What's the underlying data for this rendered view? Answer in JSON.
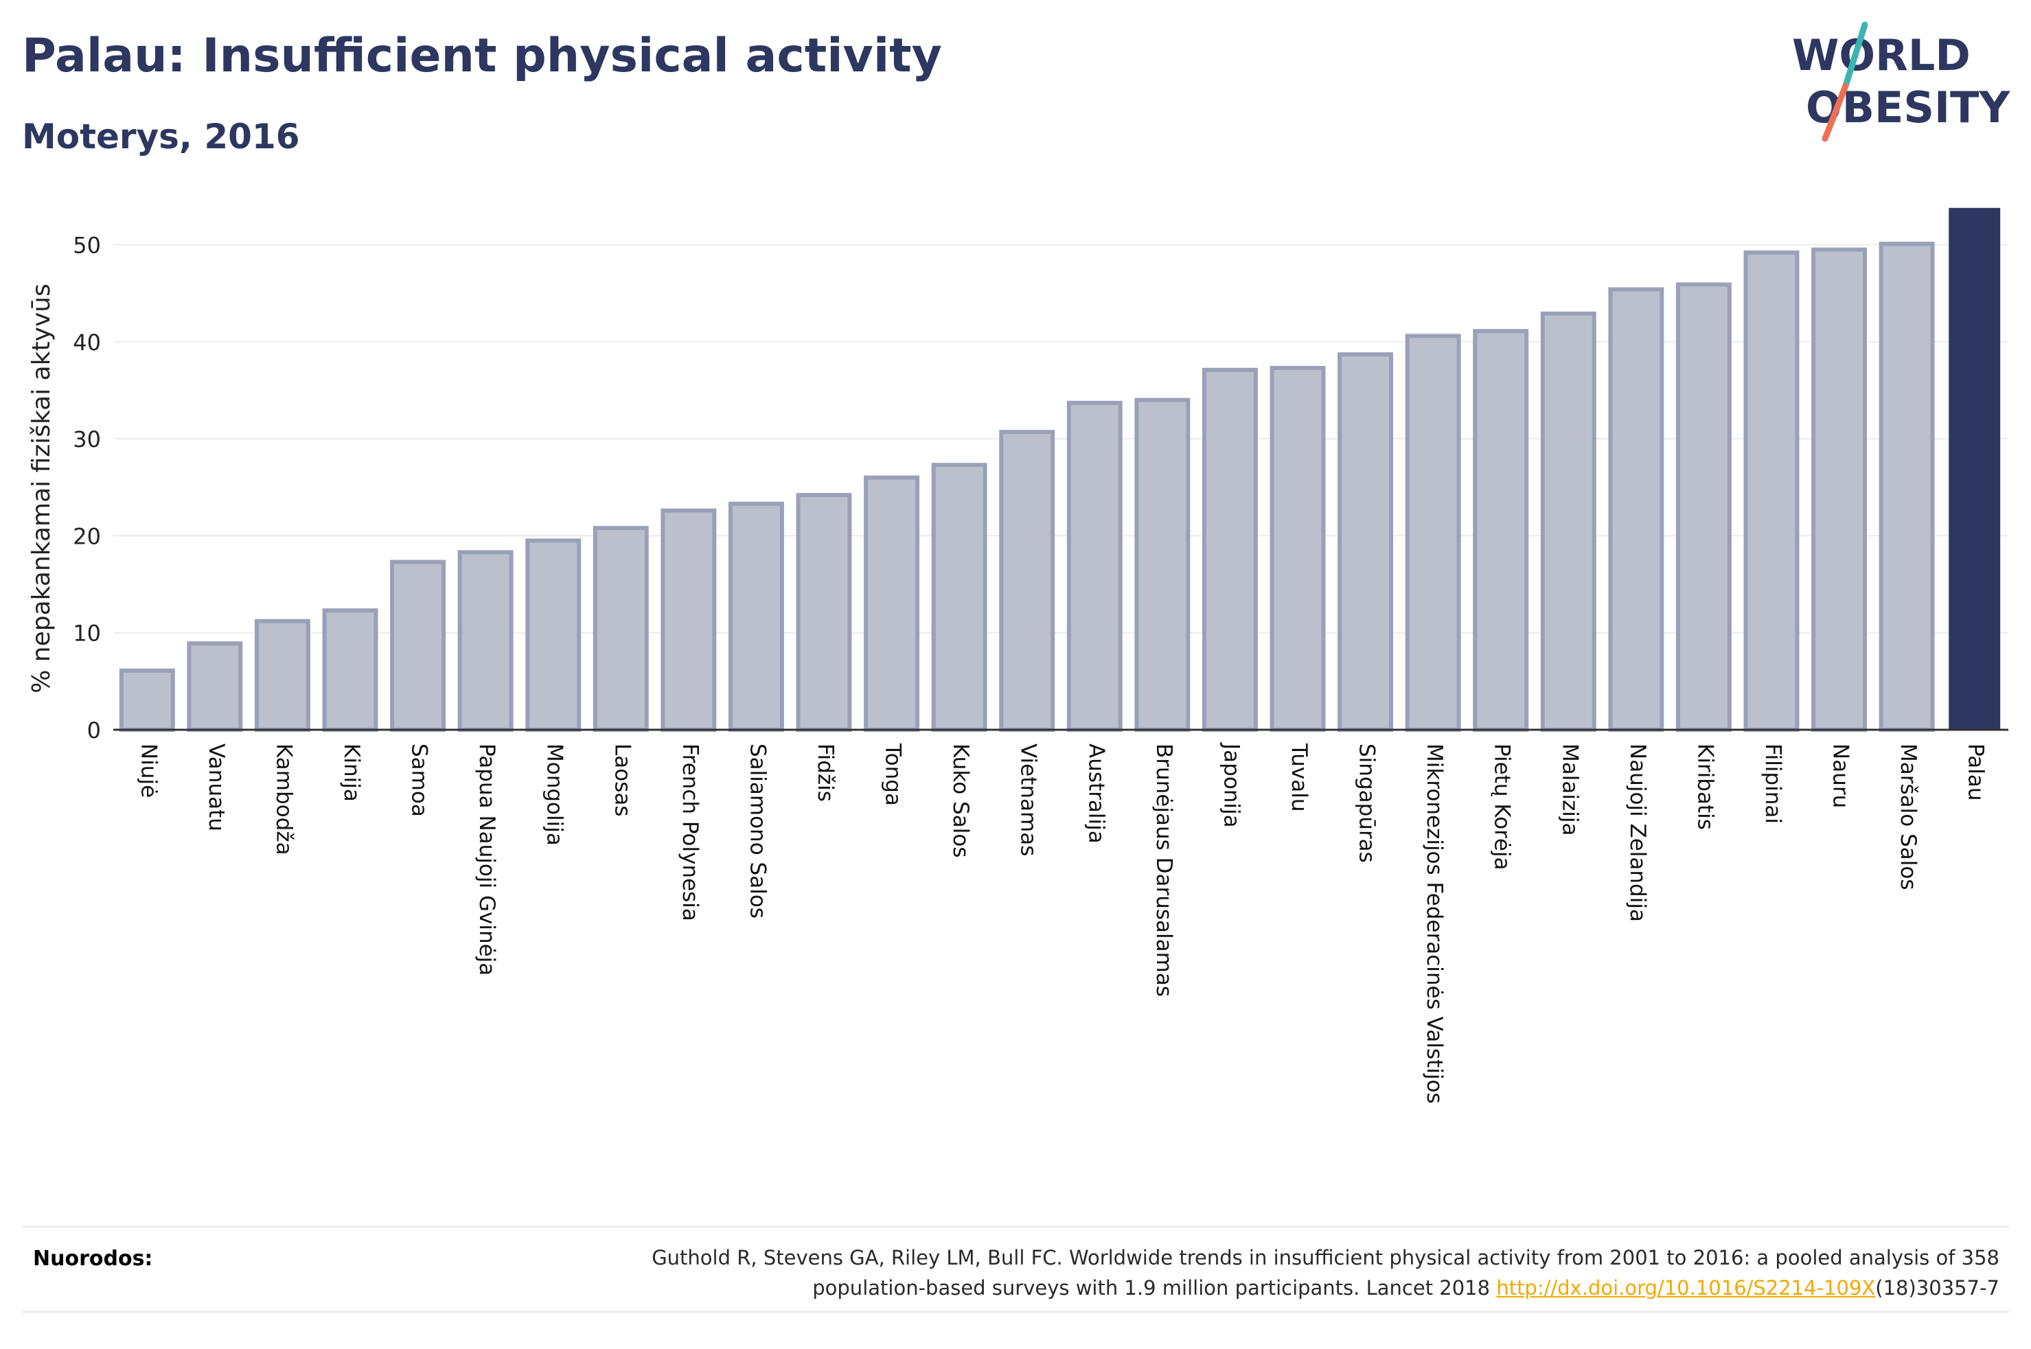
{
  "header": {
    "title": "Palau: Insufficient physical activity",
    "subtitle": "Moterys, 2016"
  },
  "logo": {
    "line1": "WORLD",
    "line2": "OBESITY",
    "text_color": "#2d3760",
    "accent_teal": "#3bb5b0",
    "accent_coral": "#ee6f57"
  },
  "colors": {
    "bar_fill": "#bcc0cc",
    "bar_stroke": "#9aa0b8",
    "highlight_bar": "#2d3760",
    "grid": "#ebebeb"
  },
  "chart_data": {
    "type": "bar",
    "title": "Palau: Insufficient physical activity",
    "subtitle": "Moterys, 2016",
    "xlabel": "",
    "ylabel": "% nepakankamai fiziškai aktyvūs",
    "ylim": [
      0,
      54
    ],
    "yticks": [
      0,
      10,
      20,
      30,
      40,
      50
    ],
    "grid": true,
    "highlight": "Palau",
    "categories": [
      "Niujė",
      "Vanuatu",
      "Kambodža",
      "Kinija",
      "Samoa",
      "Papua Naujoji Gvinėja",
      "Mongolija",
      "Laosas",
      "French Polynesia",
      "Saliamono Salos",
      "Fidžis",
      "Tonga",
      "Kuko Salos",
      "Vietnamas",
      "Australija",
      "Brunėjaus Darusalamas",
      "Japonija",
      "Tuvalu",
      "Singapūras",
      "Mikronezijos Federacinės Valstijos",
      "Pietų Korėja",
      "Malaizija",
      "Naujoji Zelandija",
      "Kiribatis",
      "Filipinai",
      "Nauru",
      "Maršalo Salos",
      "Palau"
    ],
    "values": [
      6.1,
      8.9,
      11.2,
      12.3,
      17.3,
      18.3,
      19.5,
      20.8,
      22.6,
      23.3,
      24.2,
      26.0,
      27.3,
      30.7,
      33.7,
      34.0,
      37.1,
      37.3,
      38.7,
      40.6,
      41.1,
      42.9,
      45.4,
      45.9,
      49.2,
      49.5,
      50.1,
      53.8
    ]
  },
  "footer": {
    "label": "Nuorodos:",
    "citation_line1": "Guthold R, Stevens GA, Riley LM, Bull FC. Worldwide trends in insufficient physical activity from 2001 to 2016: a pooled analysis of 358",
    "citation_line2_pre": "population-based surveys with 1.9 million participants. Lancet 2018 ",
    "citation_link": "http://dx.doi.org/10.1016/S2214-109X",
    "citation_line2_post": "(18)30357-7"
  }
}
